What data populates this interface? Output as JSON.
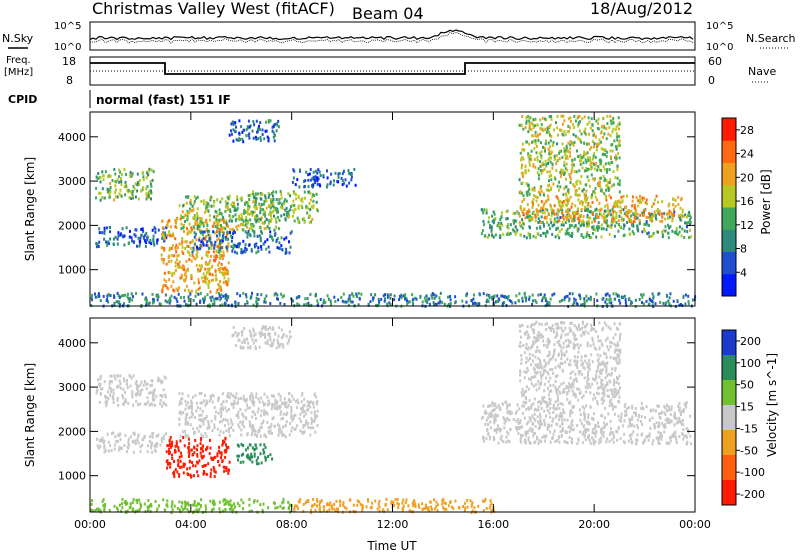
{
  "header": {
    "title": "Christmas Valley West (fitACF)",
    "beam": "Beam 04",
    "date": "18/Aug/2012"
  },
  "top_panels": {
    "sky": {
      "left_label": "N.Sky",
      "right_label": "N.Search",
      "tick_hi": "10^5",
      "tick_lo": "10^0"
    },
    "freq": {
      "left_label_1": "Freq.",
      "left_label_2": "[MHz]",
      "ticks_left": [
        "18",
        "8"
      ],
      "ticks_right": [
        "60",
        "0"
      ],
      "right_label": "Nave"
    },
    "cpid": {
      "label": "CPID",
      "value": "normal (fast) 151 IF"
    }
  },
  "chart_data": [
    {
      "type": "heatmap",
      "name_printed": "Power",
      "ylabel": "Slant Range [km]",
      "xlabel": "",
      "x_ticks": [
        "00:00",
        "04:00",
        "08:00",
        "12:00",
        "16:00",
        "20:00",
        "00:00"
      ],
      "x_range_hours": [
        0,
        24
      ],
      "y_ticks": [
        1000,
        2000,
        3000,
        4000
      ],
      "y_range_km": [
        180,
        4560
      ],
      "colorbar": {
        "label": "Power [dB]",
        "ticks": [
          "4",
          "8",
          "12",
          "16",
          "20",
          "24",
          "28"
        ],
        "range": [
          0,
          30
        ],
        "colors": [
          "#0019ff",
          "#1f4fd0",
          "#2e8a7a",
          "#3fa85a",
          "#b8c822",
          "#f0a020",
          "#ff6a10",
          "#ff1a00"
        ]
      },
      "regions": [
        {
          "t0": 0.2,
          "t1": 2.5,
          "r0": 2600,
          "r1": 3300,
          "v": 14
        },
        {
          "t0": 0.2,
          "t1": 3.0,
          "r0": 1550,
          "r1": 2000,
          "v": 7
        },
        {
          "t0": 2.8,
          "t1": 5.5,
          "r0": 500,
          "r1": 2200,
          "v": 20
        },
        {
          "t0": 3.5,
          "t1": 7.5,
          "r0": 1900,
          "r1": 2700,
          "v": 15
        },
        {
          "t0": 4.0,
          "t1": 8.0,
          "r0": 1400,
          "r1": 1900,
          "v": 7
        },
        {
          "t0": 5.5,
          "t1": 7.5,
          "r0": 3900,
          "r1": 4400,
          "v": 7
        },
        {
          "t0": 6.0,
          "t1": 9.0,
          "r0": 2100,
          "r1": 2800,
          "v": 14
        },
        {
          "t0": 8.0,
          "t1": 10.5,
          "r0": 2900,
          "r1": 3300,
          "v": 6
        },
        {
          "t0": 15.5,
          "t1": 23.8,
          "r0": 1750,
          "r1": 2400,
          "v": 12
        },
        {
          "t0": 17.0,
          "t1": 23.5,
          "r0": 2100,
          "r1": 2700,
          "v": 20
        },
        {
          "t0": 17.0,
          "t1": 21.0,
          "r0": 2700,
          "r1": 4500,
          "v": 16
        },
        {
          "t0": 0.0,
          "t1": 24.0,
          "r0": 200,
          "r1": 500,
          "v": 9
        }
      ]
    },
    {
      "type": "heatmap",
      "name_printed": "Velocity",
      "ylabel": "Slant Range [km]",
      "xlabel": "Time UT",
      "x_ticks": [
        "00:00",
        "04:00",
        "08:00",
        "12:00",
        "16:00",
        "20:00",
        "00:00"
      ],
      "x_range_hours": [
        0,
        24
      ],
      "y_ticks": [
        1000,
        2000,
        3000,
        4000
      ],
      "y_range_km": [
        180,
        4560
      ],
      "colorbar": {
        "label": "Velocity [m s^-1]",
        "ticks": [
          "200",
          "100",
          "50",
          "15",
          "-15",
          "-50",
          "-100",
          "-200"
        ],
        "colors": [
          "#1a3acc",
          "#2a8c5a",
          "#70c030",
          "#c8c8c8",
          "#f0a020",
          "#ff6010",
          "#ff1a00"
        ]
      },
      "regions": [
        {
          "t0": 0.2,
          "t1": 3.0,
          "r0": 2600,
          "r1": 3300,
          "v": -5
        },
        {
          "t0": 0.2,
          "t1": 3.0,
          "r0": 1550,
          "r1": 2000,
          "v": 5
        },
        {
          "t0": 3.0,
          "t1": 5.5,
          "r0": 1000,
          "r1": 1900,
          "v": -120
        },
        {
          "t0": 5.8,
          "t1": 7.2,
          "r0": 1300,
          "r1": 1750,
          "v": 70
        },
        {
          "t0": 3.5,
          "t1": 9.0,
          "r0": 1900,
          "r1": 2900,
          "v": 0
        },
        {
          "t0": 5.5,
          "t1": 8.0,
          "r0": 3900,
          "r1": 4400,
          "v": 0
        },
        {
          "t0": 15.5,
          "t1": 23.8,
          "r0": 1750,
          "r1": 2700,
          "v": 0
        },
        {
          "t0": 17.0,
          "t1": 21.0,
          "r0": 2700,
          "r1": 4500,
          "v": 0
        },
        {
          "t0": 8.0,
          "t1": 16.0,
          "r0": 200,
          "r1": 500,
          "v": -30
        },
        {
          "t0": 0.0,
          "t1": 8.0,
          "r0": 200,
          "r1": 500,
          "v": 30
        }
      ]
    }
  ]
}
